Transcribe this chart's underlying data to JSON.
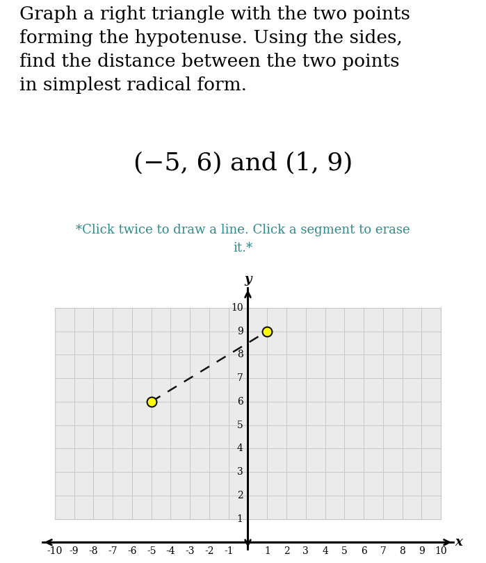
{
  "title_lines": [
    "Graph a right triangle with the two points",
    "forming the hypotenuse. Using the sides,",
    "find the distance between the two points",
    "in simplest radical form."
  ],
  "points_label": "(−5, 6) and (1, 9)",
  "instruction": "*Click twice to draw a line. Click a segment to erase\nit.*",
  "point1": [
    -5,
    6
  ],
  "point2": [
    1,
    9
  ],
  "xlim": [
    -10,
    10
  ],
  "y_grid_min": 1,
  "y_grid_max": 10,
  "grid_color": "#c8c8c8",
  "background_color": "#ffffff",
  "plot_bg_color": "#ebebeb",
  "dashed_line_color": "#111111",
  "point_color": "#ffff00",
  "point_edge_color": "#111111",
  "title_fontsize": 19,
  "points_label_fontsize": 26,
  "instruction_fontsize": 13,
  "instruction_color": "#2e8b8b",
  "axis_label_fontsize": 13,
  "tick_fontsize": 10
}
